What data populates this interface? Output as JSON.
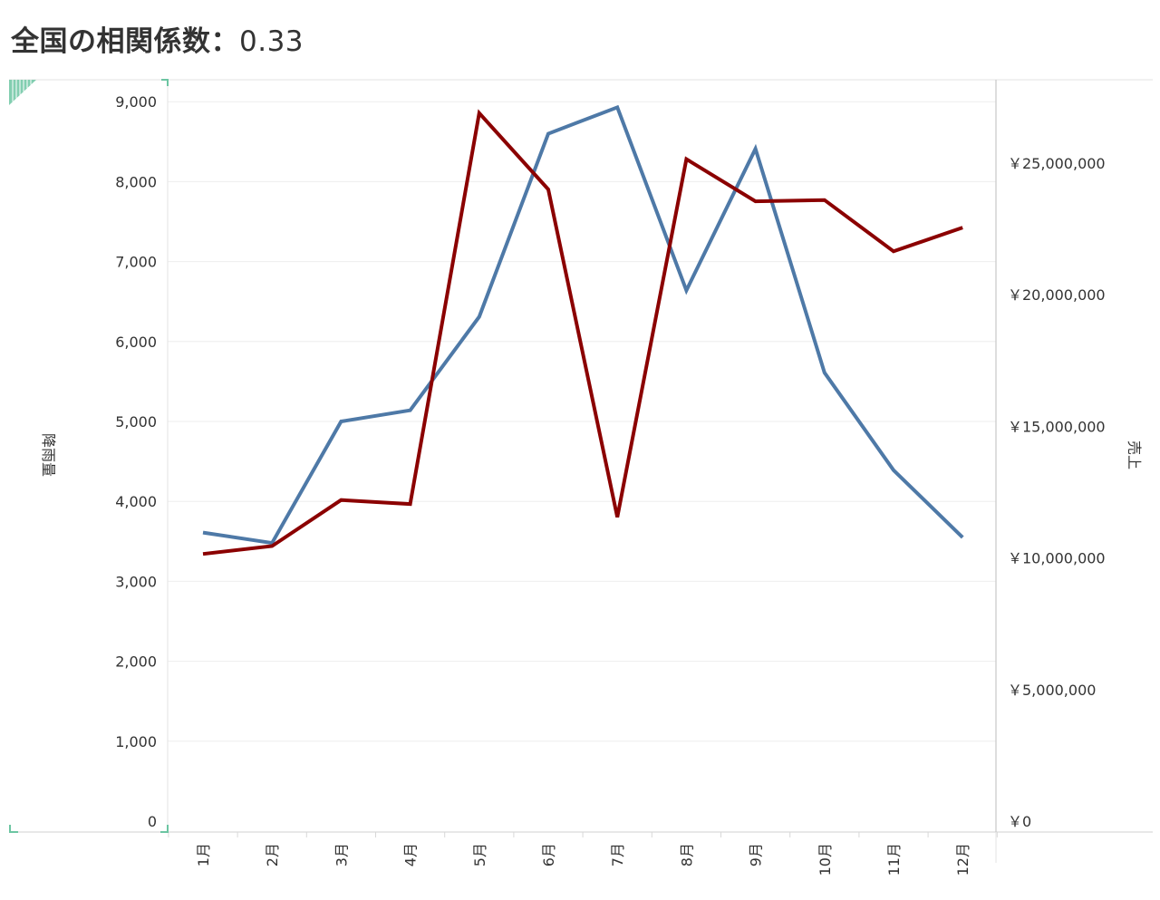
{
  "title": {
    "label": "全国の相関係数：",
    "value": "0.33"
  },
  "colors": {
    "rainfall": "#4e79a7",
    "sales": "#8b0000",
    "selection_marker": "#6cc5a2",
    "gridline": "#eeeeee",
    "axis": "#c8c8c8"
  },
  "chart_data": {
    "type": "line",
    "x": [
      "1月",
      "2月",
      "3月",
      "4月",
      "5月",
      "6月",
      "7月",
      "8月",
      "9月",
      "10月",
      "11月",
      "12月"
    ],
    "y_left": {
      "label": "降雨量",
      "range": [
        0,
        9400
      ],
      "ticks": [
        0,
        1000,
        2000,
        3000,
        4000,
        5000,
        6000,
        7000,
        8000,
        9000
      ],
      "tick_labels": [
        "0",
        "1,000",
        "2,000",
        "3,000",
        "4,000",
        "5,000",
        "6,000",
        "7,000",
        "8,000",
        "9,000"
      ]
    },
    "y_right": {
      "label": "売上",
      "range": [
        0,
        28000000
      ],
      "ticks": [
        0,
        5000000,
        10000000,
        15000000,
        20000000,
        25000000
      ],
      "tick_labels": [
        "￥0",
        "￥5,000,000",
        "￥10,000,000",
        "￥15,000,000",
        "￥20,000,000",
        "￥25,000,000"
      ]
    },
    "series": [
      {
        "axis": "left",
        "color": "#4e79a7",
        "values": [
          3610,
          3480,
          5000,
          5140,
          6310,
          8600,
          8930,
          6640,
          8410,
          5610,
          4390,
          3550
        ]
      },
      {
        "axis": "right",
        "color": "#8b0000",
        "values": [
          10150000,
          10450000,
          12200000,
          12050000,
          26900000,
          24000000,
          11550000,
          25150000,
          23550000,
          23600000,
          21650000,
          22550000
        ]
      }
    ],
    "grid": true,
    "legend": "none"
  }
}
